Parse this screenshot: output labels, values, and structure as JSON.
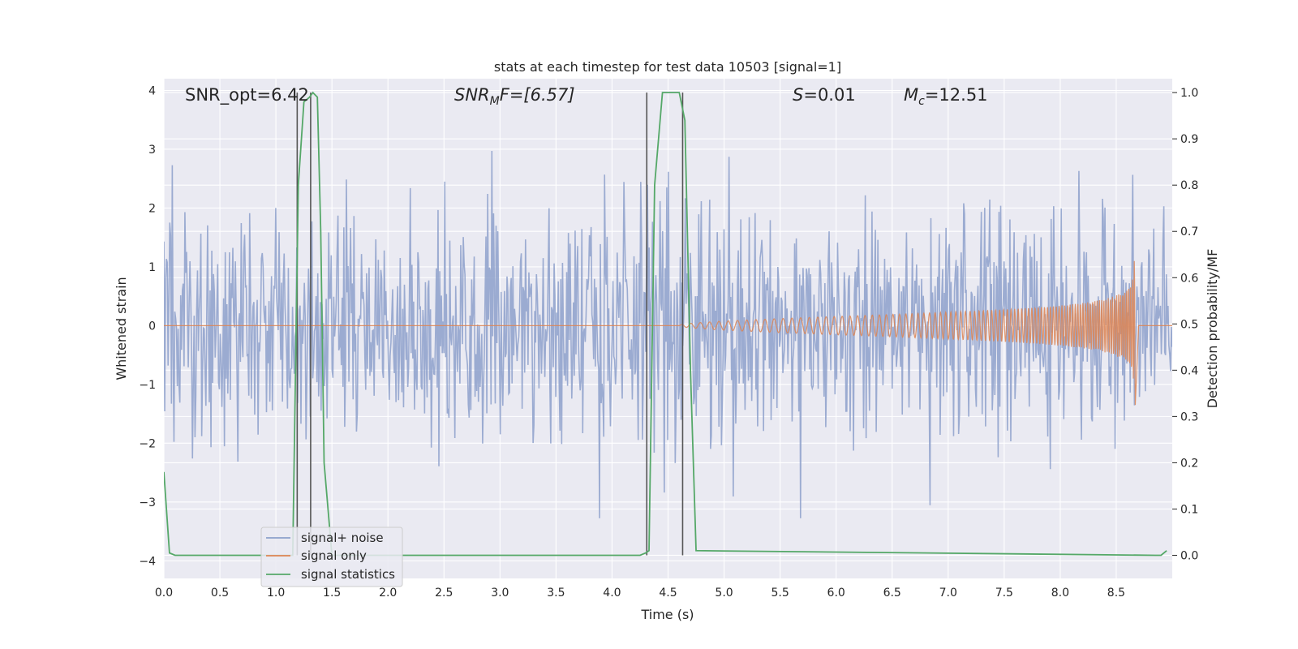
{
  "chart_data": {
    "type": "line",
    "title": "stats at each timestep for test data 10503 [signal=1]",
    "xlabel": "Time (s)",
    "ylabel": "Whitened strain",
    "y2label": "Detection probability/MF",
    "xlim": [
      0,
      9.0
    ],
    "ylim": [
      -4.3,
      4.2
    ],
    "y2lim": [
      -0.05,
      1.03
    ],
    "xticks": [
      "0.0",
      "0.5",
      "1.0",
      "1.5",
      "2.0",
      "2.5",
      "3.0",
      "3.5",
      "4.0",
      "4.5",
      "5.0",
      "5.5",
      "6.0",
      "6.5",
      "7.0",
      "7.5",
      "8.0",
      "8.5"
    ],
    "yticks": [
      "4",
      "3",
      "2",
      "1",
      "0",
      "−1",
      "−2",
      "−3",
      "−4"
    ],
    "y2ticks": [
      "1.0",
      "0.9",
      "0.8",
      "0.7",
      "0.6",
      "0.5",
      "0.4",
      "0.3",
      "0.2",
      "0.1",
      "0.0"
    ],
    "grid": true,
    "legend_position": "lower-left",
    "annotations": {
      "snr_opt": "SNR_opt=6.42",
      "snr_mf_main": "SNR",
      "snr_mf_sub": "M",
      "snr_mf_rest": "F=[6.57]",
      "s_main": "S",
      "s_rest": "=0.01",
      "mc_main": "M",
      "mc_sub": "c",
      "mc_rest": "=12.51"
    },
    "series": [
      {
        "name": "signal+ noise",
        "axis": "left",
        "color": "#8da0cb",
        "description_values": "whitened noise, roughly gaussian, amplitude about ±4",
        "noise_seed": 10503,
        "noise_sigma": 1.0,
        "n_points": 1200
      },
      {
        "name": "signal only",
        "axis": "left",
        "color": "#dd8452",
        "chirp": {
          "t_start": 4.6,
          "t_merger": 8.67,
          "peak_amplitude": 1.35,
          "f_start": 12,
          "f_end": 60
        }
      },
      {
        "name": "signal statistics",
        "axis": "right",
        "color": "#55a868",
        "x": [
          0.0,
          0.05,
          0.1,
          1.0,
          1.15,
          1.2,
          1.25,
          1.3,
          1.33,
          1.37,
          1.4,
          1.43,
          1.5,
          4.25,
          4.3,
          4.33,
          4.38,
          4.45,
          4.55,
          4.6,
          4.65,
          4.7,
          4.75,
          8.85,
          8.9,
          8.95
        ],
        "y": [
          0.18,
          0.005,
          0.0,
          0.0,
          0.0,
          0.8,
          0.98,
          0.99,
          1.0,
          0.99,
          0.7,
          0.2,
          0.0,
          0.0,
          0.005,
          0.01,
          0.8,
          1.0,
          1.0,
          1.0,
          0.94,
          0.4,
          0.01,
          0.0,
          0.0,
          0.01
        ]
      }
    ],
    "vertical_lines": [
      1.19,
      1.31,
      4.31,
      4.63
    ]
  },
  "legend": {
    "items": [
      "signal+ noise",
      "signal only",
      "signal statistics"
    ]
  }
}
